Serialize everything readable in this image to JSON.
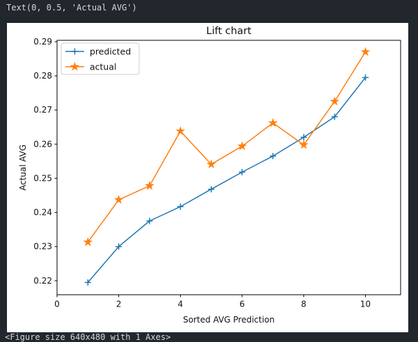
{
  "terminal": {
    "top_line": "Text(0, 0.5, 'Actual AVG')",
    "bottom_line": "<Figure size 640x480 with 1 Axes>"
  },
  "colors": {
    "notebook_background": "#22272e",
    "terminal_text": "#d2d8df",
    "figure_background": "#ffffff",
    "axis_color": "#000000",
    "tick_label_color": "#1a1a1a",
    "legend_border": "#cccccc",
    "predicted_color": "#1f77b4",
    "actual_color": "#ff7f0e"
  },
  "chart_data": {
    "type": "line",
    "title": "Lift chart",
    "xlabel": "Sorted AVG Prediction",
    "ylabel": "Actual AVG",
    "x": [
      1,
      2,
      3,
      4,
      5,
      6,
      7,
      8,
      9,
      10
    ],
    "series": [
      {
        "name": "predicted",
        "color": "#1f77b4",
        "marker": "plus",
        "values": [
          0.2195,
          0.23,
          0.2375,
          0.2417,
          0.2468,
          0.2518,
          0.2565,
          0.262,
          0.268,
          0.2795
        ]
      },
      {
        "name": "actual",
        "color": "#ff7f0e",
        "marker": "star",
        "values": [
          0.2313,
          0.2437,
          0.2478,
          0.2638,
          0.2541,
          0.2594,
          0.2662,
          0.2598,
          0.2725,
          0.287
        ]
      }
    ],
    "xlim": [
      0,
      11.14
    ],
    "ylim": [
      0.2159,
      0.2904
    ],
    "xticks": [
      0,
      2,
      4,
      6,
      8,
      10
    ],
    "yticks": [
      0.22,
      0.23,
      0.24,
      0.25,
      0.26,
      0.27,
      0.28,
      0.29
    ],
    "grid": false,
    "legend": {
      "position": "upper left",
      "entries": [
        "predicted",
        "actual"
      ]
    }
  }
}
